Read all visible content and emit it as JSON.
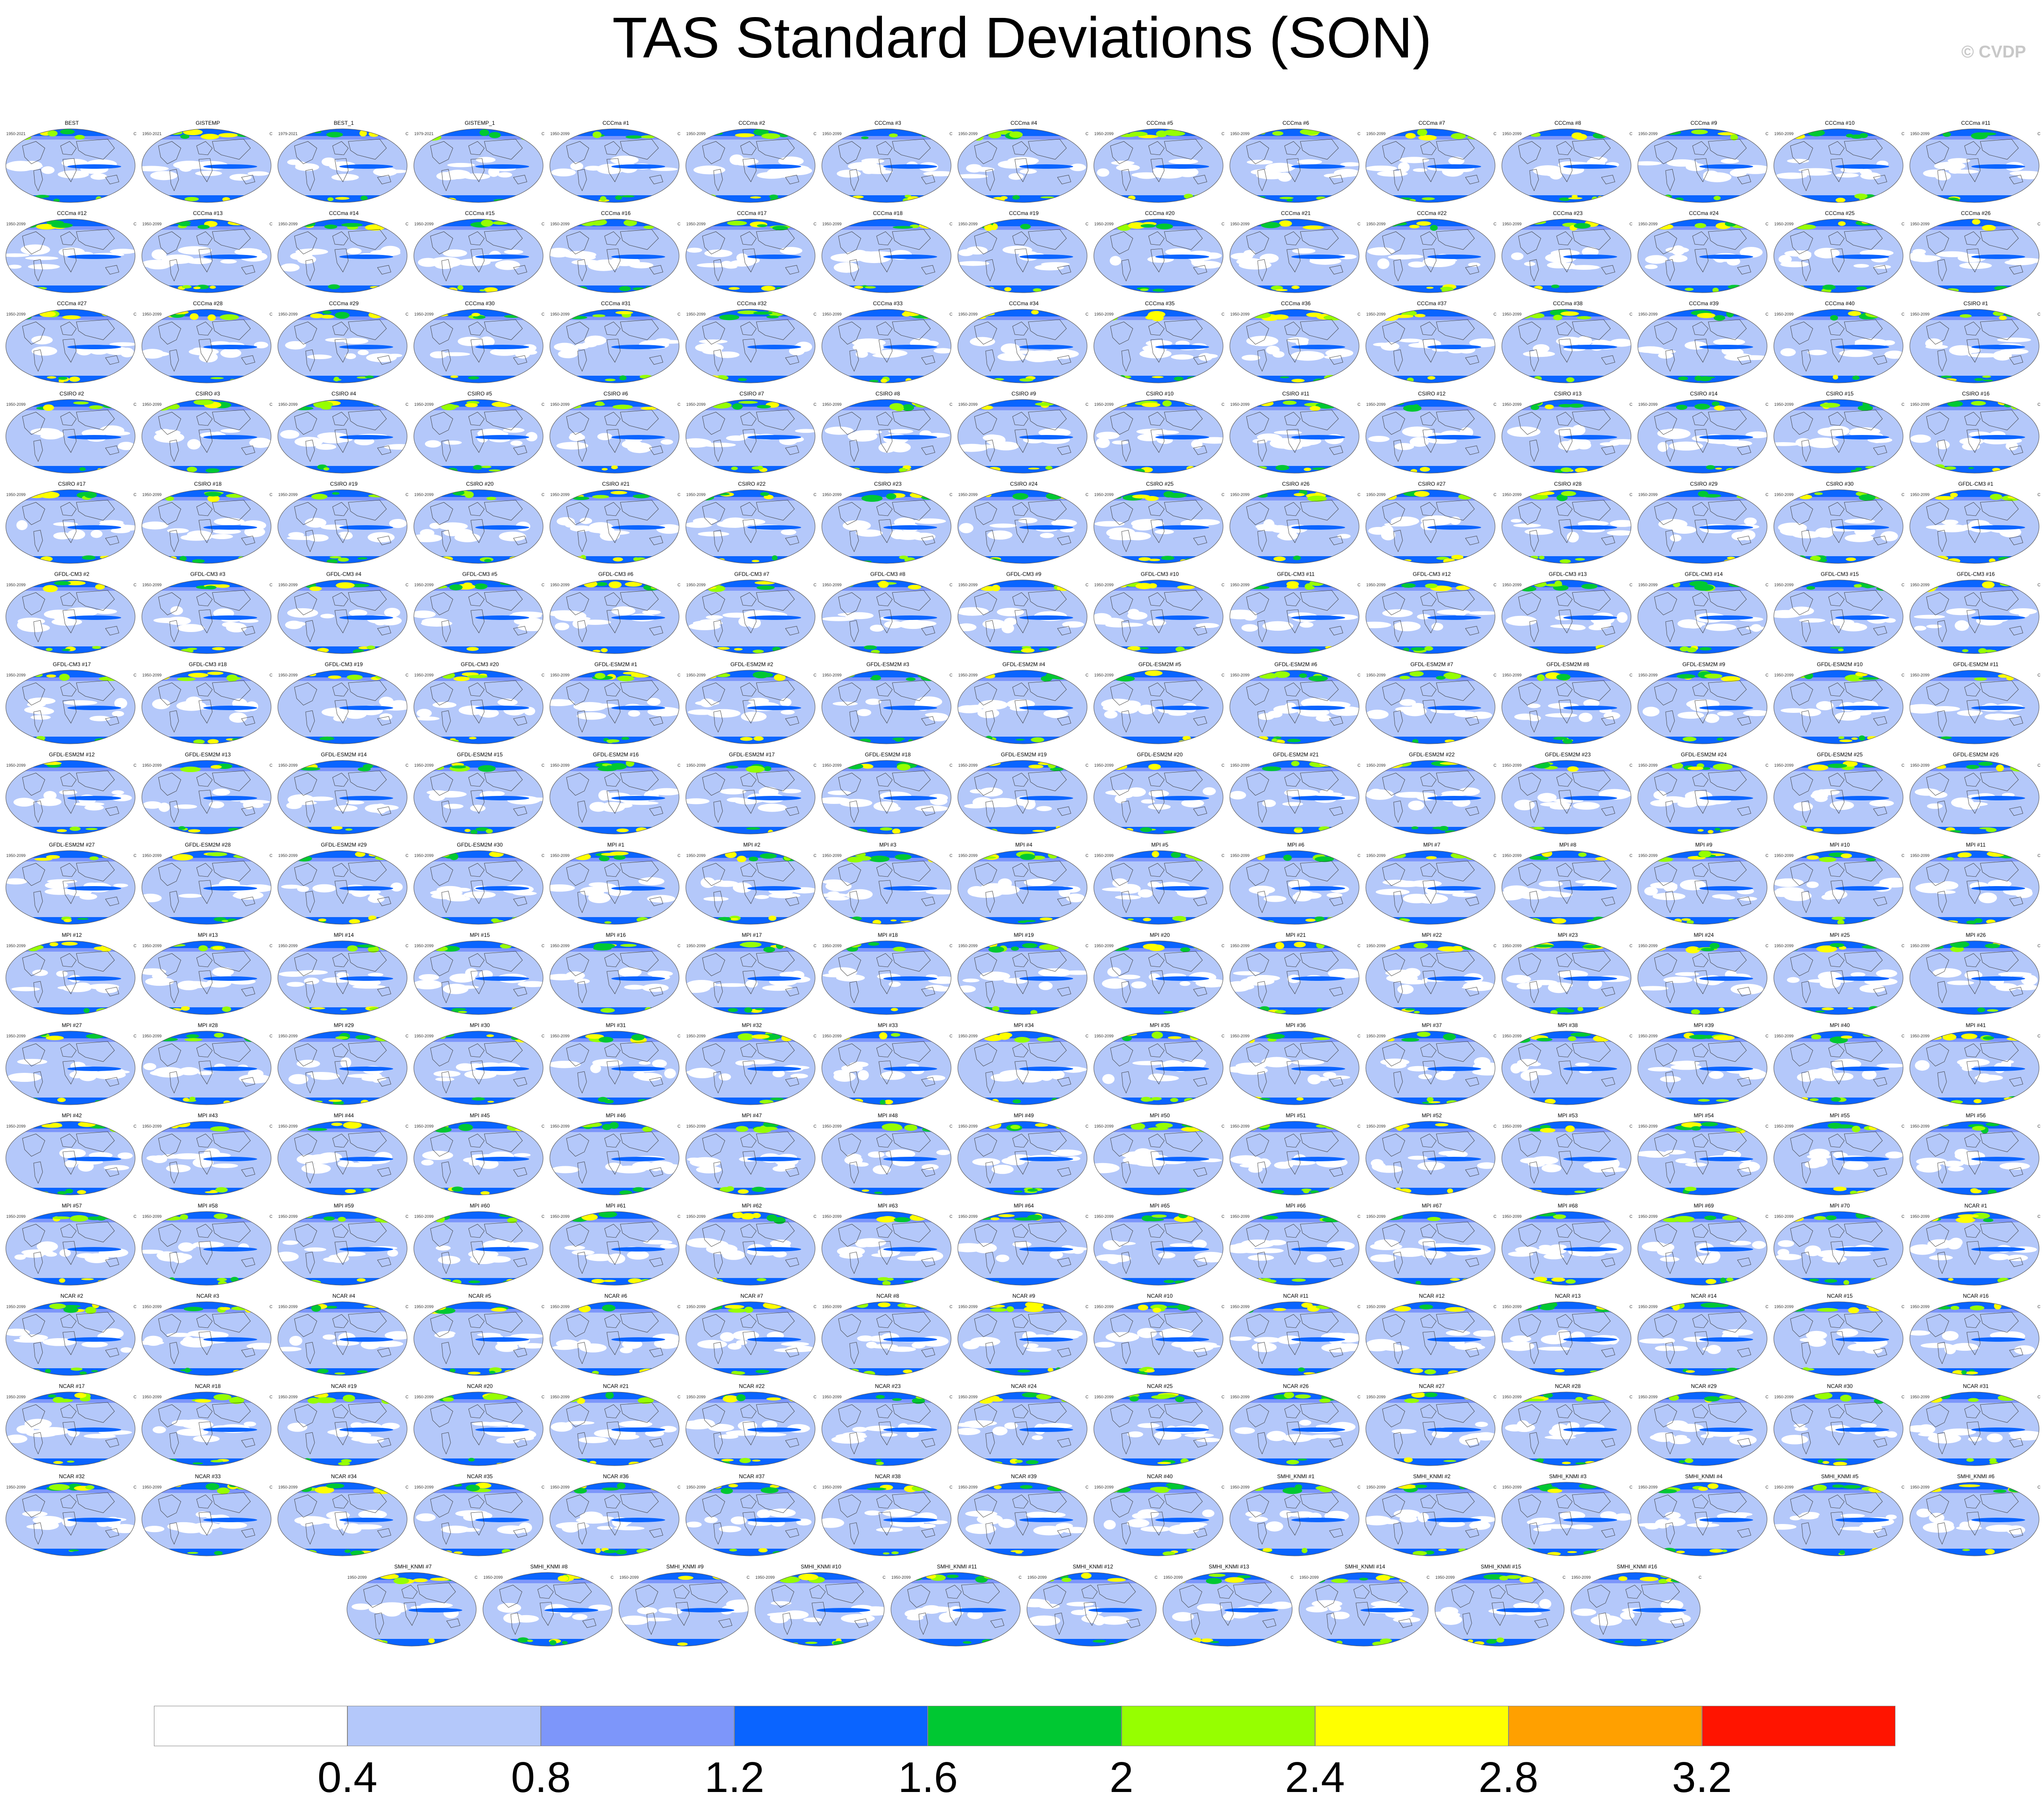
{
  "title": "TAS Standard Deviations (SON)",
  "copyright": "© CVDP",
  "units": "C",
  "colorbar": {
    "colors": [
      "#ffffff",
      "#b4c8fa",
      "#7d96fa",
      "#0a64ff",
      "#00c832",
      "#96ff00",
      "#ffff00",
      "#ffa000",
      "#ff1400"
    ],
    "labels": [
      "0.4",
      "0.8",
      "1.2",
      "1.6",
      "2",
      "2.4",
      "2.8",
      "3.2"
    ]
  },
  "panels": [
    {
      "name": "BEST",
      "years": "1950-2021"
    },
    {
      "name": "GISTEMP",
      "years": "1950-2021"
    },
    {
      "name": "BEST_1",
      "years": "1979-2021"
    },
    {
      "name": "GISTEMP_1",
      "years": "1979-2021"
    },
    {
      "name": "CCCma #1",
      "years": "1950-2099"
    },
    {
      "name": "CCCma #2",
      "years": "1950-2099"
    },
    {
      "name": "CCCma #3",
      "years": "1950-2099"
    },
    {
      "name": "CCCma #4",
      "years": "1950-2099"
    },
    {
      "name": "CCCma #5",
      "years": "1950-2099"
    },
    {
      "name": "CCCma #6",
      "years": "1950-2099"
    },
    {
      "name": "CCCma #7",
      "years": "1950-2099"
    },
    {
      "name": "CCCma #8",
      "years": "1950-2099"
    },
    {
      "name": "CCCma #9",
      "years": "1950-2099"
    },
    {
      "name": "CCCma #10",
      "years": "1950-2099"
    },
    {
      "name": "CCCma #11",
      "years": "1950-2099"
    },
    {
      "name": "CCCma #12",
      "years": "1950-2099"
    },
    {
      "name": "CCCma #13",
      "years": "1950-2099"
    },
    {
      "name": "CCCma #14",
      "years": "1950-2099"
    },
    {
      "name": "CCCma #15",
      "years": "1950-2099"
    },
    {
      "name": "CCCma #16",
      "years": "1950-2099"
    },
    {
      "name": "CCCma #17",
      "years": "1950-2099"
    },
    {
      "name": "CCCma #18",
      "years": "1950-2099"
    },
    {
      "name": "CCCma #19",
      "years": "1950-2099"
    },
    {
      "name": "CCCma #20",
      "years": "1950-2099"
    },
    {
      "name": "CCCma #21",
      "years": "1950-2099"
    },
    {
      "name": "CCCma #22",
      "years": "1950-2099"
    },
    {
      "name": "CCCma #23",
      "years": "1950-2099"
    },
    {
      "name": "CCCma #24",
      "years": "1950-2099"
    },
    {
      "name": "CCCma #25",
      "years": "1950-2099"
    },
    {
      "name": "CCCma #26",
      "years": "1950-2099"
    },
    {
      "name": "CCCma #27",
      "years": "1950-2099"
    },
    {
      "name": "CCCma #28",
      "years": "1950-2099"
    },
    {
      "name": "CCCma #29",
      "years": "1950-2099"
    },
    {
      "name": "CCCma #30",
      "years": "1950-2099"
    },
    {
      "name": "CCCma #31",
      "years": "1950-2099"
    },
    {
      "name": "CCCma #32",
      "years": "1950-2099"
    },
    {
      "name": "CCCma #33",
      "years": "1950-2099"
    },
    {
      "name": "CCCma #34",
      "years": "1950-2099"
    },
    {
      "name": "CCCma #35",
      "years": "1950-2099"
    },
    {
      "name": "CCCma #36",
      "years": "1950-2099"
    },
    {
      "name": "CCCma #37",
      "years": "1950-2099"
    },
    {
      "name": "CCCma #38",
      "years": "1950-2099"
    },
    {
      "name": "CCCma #39",
      "years": "1950-2099"
    },
    {
      "name": "CCCma #40",
      "years": "1950-2099"
    },
    {
      "name": "CSIRO #1",
      "years": "1950-2099"
    },
    {
      "name": "CSIRO #2",
      "years": "1950-2099"
    },
    {
      "name": "CSIRO #3",
      "years": "1950-2099"
    },
    {
      "name": "CSIRO #4",
      "years": "1950-2099"
    },
    {
      "name": "CSIRO #5",
      "years": "1950-2099"
    },
    {
      "name": "CSIRO #6",
      "years": "1950-2099"
    },
    {
      "name": "CSIRO #7",
      "years": "1950-2099"
    },
    {
      "name": "CSIRO #8",
      "years": "1950-2099"
    },
    {
      "name": "CSIRO #9",
      "years": "1950-2099"
    },
    {
      "name": "CSIRO #10",
      "years": "1950-2099"
    },
    {
      "name": "CSIRO #11",
      "years": "1950-2099"
    },
    {
      "name": "CSIRO #12",
      "years": "1950-2099"
    },
    {
      "name": "CSIRO #13",
      "years": "1950-2099"
    },
    {
      "name": "CSIRO #14",
      "years": "1950-2099"
    },
    {
      "name": "CSIRO #15",
      "years": "1950-2099"
    },
    {
      "name": "CSIRO #16",
      "years": "1950-2099"
    },
    {
      "name": "CSIRO #17",
      "years": "1950-2099"
    },
    {
      "name": "CSIRO #18",
      "years": "1950-2099"
    },
    {
      "name": "CSIRO #19",
      "years": "1950-2099"
    },
    {
      "name": "CSIRO #20",
      "years": "1950-2099"
    },
    {
      "name": "CSIRO #21",
      "years": "1950-2099"
    },
    {
      "name": "CSIRO #22",
      "years": "1950-2099"
    },
    {
      "name": "CSIRO #23",
      "years": "1950-2099"
    },
    {
      "name": "CSIRO #24",
      "years": "1950-2099"
    },
    {
      "name": "CSIRO #25",
      "years": "1950-2099"
    },
    {
      "name": "CSIRO #26",
      "years": "1950-2099"
    },
    {
      "name": "CSIRO #27",
      "years": "1950-2099"
    },
    {
      "name": "CSIRO #28",
      "years": "1950-2099"
    },
    {
      "name": "CSIRO #29",
      "years": "1950-2099"
    },
    {
      "name": "CSIRO #30",
      "years": "1950-2099"
    },
    {
      "name": "GFDL-CM3 #1",
      "years": "1950-2099"
    },
    {
      "name": "GFDL-CM3 #2",
      "years": "1950-2099"
    },
    {
      "name": "GFDL-CM3 #3",
      "years": "1950-2099"
    },
    {
      "name": "GFDL-CM3 #4",
      "years": "1950-2099"
    },
    {
      "name": "GFDL-CM3 #5",
      "years": "1950-2099"
    },
    {
      "name": "GFDL-CM3 #6",
      "years": "1950-2099"
    },
    {
      "name": "GFDL-CM3 #7",
      "years": "1950-2099"
    },
    {
      "name": "GFDL-CM3 #8",
      "years": "1950-2099"
    },
    {
      "name": "GFDL-CM3 #9",
      "years": "1950-2099"
    },
    {
      "name": "GFDL-CM3 #10",
      "years": "1950-2099"
    },
    {
      "name": "GFDL-CM3 #11",
      "years": "1950-2099"
    },
    {
      "name": "GFDL-CM3 #12",
      "years": "1950-2099"
    },
    {
      "name": "GFDL-CM3 #13",
      "years": "1950-2099"
    },
    {
      "name": "GFDL-CM3 #14",
      "years": "1950-2099"
    },
    {
      "name": "GFDL-CM3 #15",
      "years": "1950-2099"
    },
    {
      "name": "GFDL-CM3 #16",
      "years": "1950-2099"
    },
    {
      "name": "GFDL-CM3 #17",
      "years": "1950-2099"
    },
    {
      "name": "GFDL-CM3 #18",
      "years": "1950-2099"
    },
    {
      "name": "GFDL-CM3 #19",
      "years": "1950-2099"
    },
    {
      "name": "GFDL-CM3 #20",
      "years": "1950-2099"
    },
    {
      "name": "GFDL-ESM2M #1",
      "years": "1950-2099"
    },
    {
      "name": "GFDL-ESM2M #2",
      "years": "1950-2099"
    },
    {
      "name": "GFDL-ESM2M #3",
      "years": "1950-2099"
    },
    {
      "name": "GFDL-ESM2M #4",
      "years": "1950-2099"
    },
    {
      "name": "GFDL-ESM2M #5",
      "years": "1950-2099"
    },
    {
      "name": "GFDL-ESM2M #6",
      "years": "1950-2099"
    },
    {
      "name": "GFDL-ESM2M #7",
      "years": "1950-2099"
    },
    {
      "name": "GFDL-ESM2M #8",
      "years": "1950-2099"
    },
    {
      "name": "GFDL-ESM2M #9",
      "years": "1950-2099"
    },
    {
      "name": "GFDL-ESM2M #10",
      "years": "1950-2099"
    },
    {
      "name": "GFDL-ESM2M #11",
      "years": "1950-2099"
    },
    {
      "name": "GFDL-ESM2M #12",
      "years": "1950-2099"
    },
    {
      "name": "GFDL-ESM2M #13",
      "years": "1950-2099"
    },
    {
      "name": "GFDL-ESM2M #14",
      "years": "1950-2099"
    },
    {
      "name": "GFDL-ESM2M #15",
      "years": "1950-2099"
    },
    {
      "name": "GFDL-ESM2M #16",
      "years": "1950-2099"
    },
    {
      "name": "GFDL-ESM2M #17",
      "years": "1950-2099"
    },
    {
      "name": "GFDL-ESM2M #18",
      "years": "1950-2099"
    },
    {
      "name": "GFDL-ESM2M #19",
      "years": "1950-2099"
    },
    {
      "name": "GFDL-ESM2M #20",
      "years": "1950-2099"
    },
    {
      "name": "GFDL-ESM2M #21",
      "years": "1950-2099"
    },
    {
      "name": "GFDL-ESM2M #22",
      "years": "1950-2099"
    },
    {
      "name": "GFDL-ESM2M #23",
      "years": "1950-2099"
    },
    {
      "name": "GFDL-ESM2M #24",
      "years": "1950-2099"
    },
    {
      "name": "GFDL-ESM2M #25",
      "years": "1950-2099"
    },
    {
      "name": "GFDL-ESM2M #26",
      "years": "1950-2099"
    },
    {
      "name": "GFDL-ESM2M #27",
      "years": "1950-2099"
    },
    {
      "name": "GFDL-ESM2M #28",
      "years": "1950-2099"
    },
    {
      "name": "GFDL-ESM2M #29",
      "years": "1950-2099"
    },
    {
      "name": "GFDL-ESM2M #30",
      "years": "1950-2099"
    },
    {
      "name": "MPI #1",
      "years": "1950-2099"
    },
    {
      "name": "MPI #2",
      "years": "1950-2099"
    },
    {
      "name": "MPI #3",
      "years": "1950-2099"
    },
    {
      "name": "MPI #4",
      "years": "1950-2099"
    },
    {
      "name": "MPI #5",
      "years": "1950-2099"
    },
    {
      "name": "MPI #6",
      "years": "1950-2099"
    },
    {
      "name": "MPI #7",
      "years": "1950-2099"
    },
    {
      "name": "MPI #8",
      "years": "1950-2099"
    },
    {
      "name": "MPI #9",
      "years": "1950-2099"
    },
    {
      "name": "MPI #10",
      "years": "1950-2099"
    },
    {
      "name": "MPI #11",
      "years": "1950-2099"
    },
    {
      "name": "MPI #12",
      "years": "1950-2099"
    },
    {
      "name": "MPI #13",
      "years": "1950-2099"
    },
    {
      "name": "MPI #14",
      "years": "1950-2099"
    },
    {
      "name": "MPI #15",
      "years": "1950-2099"
    },
    {
      "name": "MPI #16",
      "years": "1950-2099"
    },
    {
      "name": "MPI #17",
      "years": "1950-2099"
    },
    {
      "name": "MPI #18",
      "years": "1950-2099"
    },
    {
      "name": "MPI #19",
      "years": "1950-2099"
    },
    {
      "name": "MPI #20",
      "years": "1950-2099"
    },
    {
      "name": "MPI #21",
      "years": "1950-2099"
    },
    {
      "name": "MPI #22",
      "years": "1950-2099"
    },
    {
      "name": "MPI #23",
      "years": "1950-2099"
    },
    {
      "name": "MPI #24",
      "years": "1950-2099"
    },
    {
      "name": "MPI #25",
      "years": "1950-2099"
    },
    {
      "name": "MPI #26",
      "years": "1950-2099"
    },
    {
      "name": "MPI #27",
      "years": "1950-2099"
    },
    {
      "name": "MPI #28",
      "years": "1950-2099"
    },
    {
      "name": "MPI #29",
      "years": "1950-2099"
    },
    {
      "name": "MPI #30",
      "years": "1950-2099"
    },
    {
      "name": "MPI #31",
      "years": "1950-2099"
    },
    {
      "name": "MPI #32",
      "years": "1950-2099"
    },
    {
      "name": "MPI #33",
      "years": "1950-2099"
    },
    {
      "name": "MPI #34",
      "years": "1950-2099"
    },
    {
      "name": "MPI #35",
      "years": "1950-2099"
    },
    {
      "name": "MPI #36",
      "years": "1950-2099"
    },
    {
      "name": "MPI #37",
      "years": "1950-2099"
    },
    {
      "name": "MPI #38",
      "years": "1950-2099"
    },
    {
      "name": "MPI #39",
      "years": "1950-2099"
    },
    {
      "name": "MPI #40",
      "years": "1950-2099"
    },
    {
      "name": "MPI #41",
      "years": "1950-2099"
    },
    {
      "name": "MPI #42",
      "years": "1950-2099"
    },
    {
      "name": "MPI #43",
      "years": "1950-2099"
    },
    {
      "name": "MPI #44",
      "years": "1950-2099"
    },
    {
      "name": "MPI #45",
      "years": "1950-2099"
    },
    {
      "name": "MPI #46",
      "years": "1950-2099"
    },
    {
      "name": "MPI #47",
      "years": "1950-2099"
    },
    {
      "name": "MPI #48",
      "years": "1950-2099"
    },
    {
      "name": "MPI #49",
      "years": "1950-2099"
    },
    {
      "name": "MPI #50",
      "years": "1950-2099"
    },
    {
      "name": "MPI #51",
      "years": "1950-2099"
    },
    {
      "name": "MPI #52",
      "years": "1950-2099"
    },
    {
      "name": "MPI #53",
      "years": "1950-2099"
    },
    {
      "name": "MPI #54",
      "years": "1950-2099"
    },
    {
      "name": "MPI #55",
      "years": "1950-2099"
    },
    {
      "name": "MPI #56",
      "years": "1950-2099"
    },
    {
      "name": "MPI #57",
      "years": "1950-2099"
    },
    {
      "name": "MPI #58",
      "years": "1950-2099"
    },
    {
      "name": "MPI #59",
      "years": "1950-2099"
    },
    {
      "name": "MPI #60",
      "years": "1950-2099"
    },
    {
      "name": "MPI #61",
      "years": "1950-2099"
    },
    {
      "name": "MPI #62",
      "years": "1950-2099"
    },
    {
      "name": "MPI #63",
      "years": "1950-2099"
    },
    {
      "name": "MPI #64",
      "years": "1950-2099"
    },
    {
      "name": "MPI #65",
      "years": "1950-2099"
    },
    {
      "name": "MPI #66",
      "years": "1950-2099"
    },
    {
      "name": "MPI #67",
      "years": "1950-2099"
    },
    {
      "name": "MPI #68",
      "years": "1950-2099"
    },
    {
      "name": "MPI #69",
      "years": "1950-2099"
    },
    {
      "name": "MPI #70",
      "years": "1950-2099"
    },
    {
      "name": "NCAR #1",
      "years": "1950-2099"
    },
    {
      "name": "NCAR #2",
      "years": "1950-2099"
    },
    {
      "name": "NCAR #3",
      "years": "1950-2099"
    },
    {
      "name": "NCAR #4",
      "years": "1950-2099"
    },
    {
      "name": "NCAR #5",
      "years": "1950-2099"
    },
    {
      "name": "NCAR #6",
      "years": "1950-2099"
    },
    {
      "name": "NCAR #7",
      "years": "1950-2099"
    },
    {
      "name": "NCAR #8",
      "years": "1950-2099"
    },
    {
      "name": "NCAR #9",
      "years": "1950-2099"
    },
    {
      "name": "NCAR #10",
      "years": "1950-2099"
    },
    {
      "name": "NCAR #11",
      "years": "1950-2099"
    },
    {
      "name": "NCAR #12",
      "years": "1950-2099"
    },
    {
      "name": "NCAR #13",
      "years": "1950-2099"
    },
    {
      "name": "NCAR #14",
      "years": "1950-2099"
    },
    {
      "name": "NCAR #15",
      "years": "1950-2099"
    },
    {
      "name": "NCAR #16",
      "years": "1950-2099"
    },
    {
      "name": "NCAR #17",
      "years": "1950-2099"
    },
    {
      "name": "NCAR #18",
      "years": "1950-2099"
    },
    {
      "name": "NCAR #19",
      "years": "1950-2099"
    },
    {
      "name": "NCAR #20",
      "years": "1950-2099"
    },
    {
      "name": "NCAR #21",
      "years": "1950-2099"
    },
    {
      "name": "NCAR #22",
      "years": "1950-2099"
    },
    {
      "name": "NCAR #23",
      "years": "1950-2099"
    },
    {
      "name": "NCAR #24",
      "years": "1950-2099"
    },
    {
      "name": "NCAR #25",
      "years": "1950-2099"
    },
    {
      "name": "NCAR #26",
      "years": "1950-2099"
    },
    {
      "name": "NCAR #27",
      "years": "1950-2099"
    },
    {
      "name": "NCAR #28",
      "years": "1950-2099"
    },
    {
      "name": "NCAR #29",
      "years": "1950-2099"
    },
    {
      "name": "NCAR #30",
      "years": "1950-2099"
    },
    {
      "name": "NCAR #31",
      "years": "1950-2099"
    },
    {
      "name": "NCAR #32",
      "years": "1950-2099"
    },
    {
      "name": "NCAR #33",
      "years": "1950-2099"
    },
    {
      "name": "NCAR #34",
      "years": "1950-2099"
    },
    {
      "name": "NCAR #35",
      "years": "1950-2099"
    },
    {
      "name": "NCAR #36",
      "years": "1950-2099"
    },
    {
      "name": "NCAR #37",
      "years": "1950-2099"
    },
    {
      "name": "NCAR #38",
      "years": "1950-2099"
    },
    {
      "name": "NCAR #39",
      "years": "1950-2099"
    },
    {
      "name": "NCAR #40",
      "years": "1950-2099"
    },
    {
      "name": "SMHI_KNMI #1",
      "years": "1950-2099"
    },
    {
      "name": "SMHI_KNMI #2",
      "years": "1950-2099"
    },
    {
      "name": "SMHI_KNMI #3",
      "years": "1950-2099"
    },
    {
      "name": "SMHI_KNMI #4",
      "years": "1950-2099"
    },
    {
      "name": "SMHI_KNMI #5",
      "years": "1950-2099"
    },
    {
      "name": "SMHI_KNMI #6",
      "years": "1950-2099"
    },
    {
      "name": "SMHI_KNMI #7",
      "years": "1950-2099"
    },
    {
      "name": "SMHI_KNMI #8",
      "years": "1950-2099"
    },
    {
      "name": "SMHI_KNMI #9",
      "years": "1950-2099"
    },
    {
      "name": "SMHI_KNMI #10",
      "years": "1950-2099"
    },
    {
      "name": "SMHI_KNMI #11",
      "years": "1950-2099"
    },
    {
      "name": "SMHI_KNMI #12",
      "years": "1950-2099"
    },
    {
      "name": "SMHI_KNMI #13",
      "years": "1950-2099"
    },
    {
      "name": "SMHI_KNMI #14",
      "years": "1950-2099"
    },
    {
      "name": "SMHI_KNMI #15",
      "years": "1950-2099"
    },
    {
      "name": "SMHI_KNMI #16",
      "years": "1950-2099"
    }
  ]
}
